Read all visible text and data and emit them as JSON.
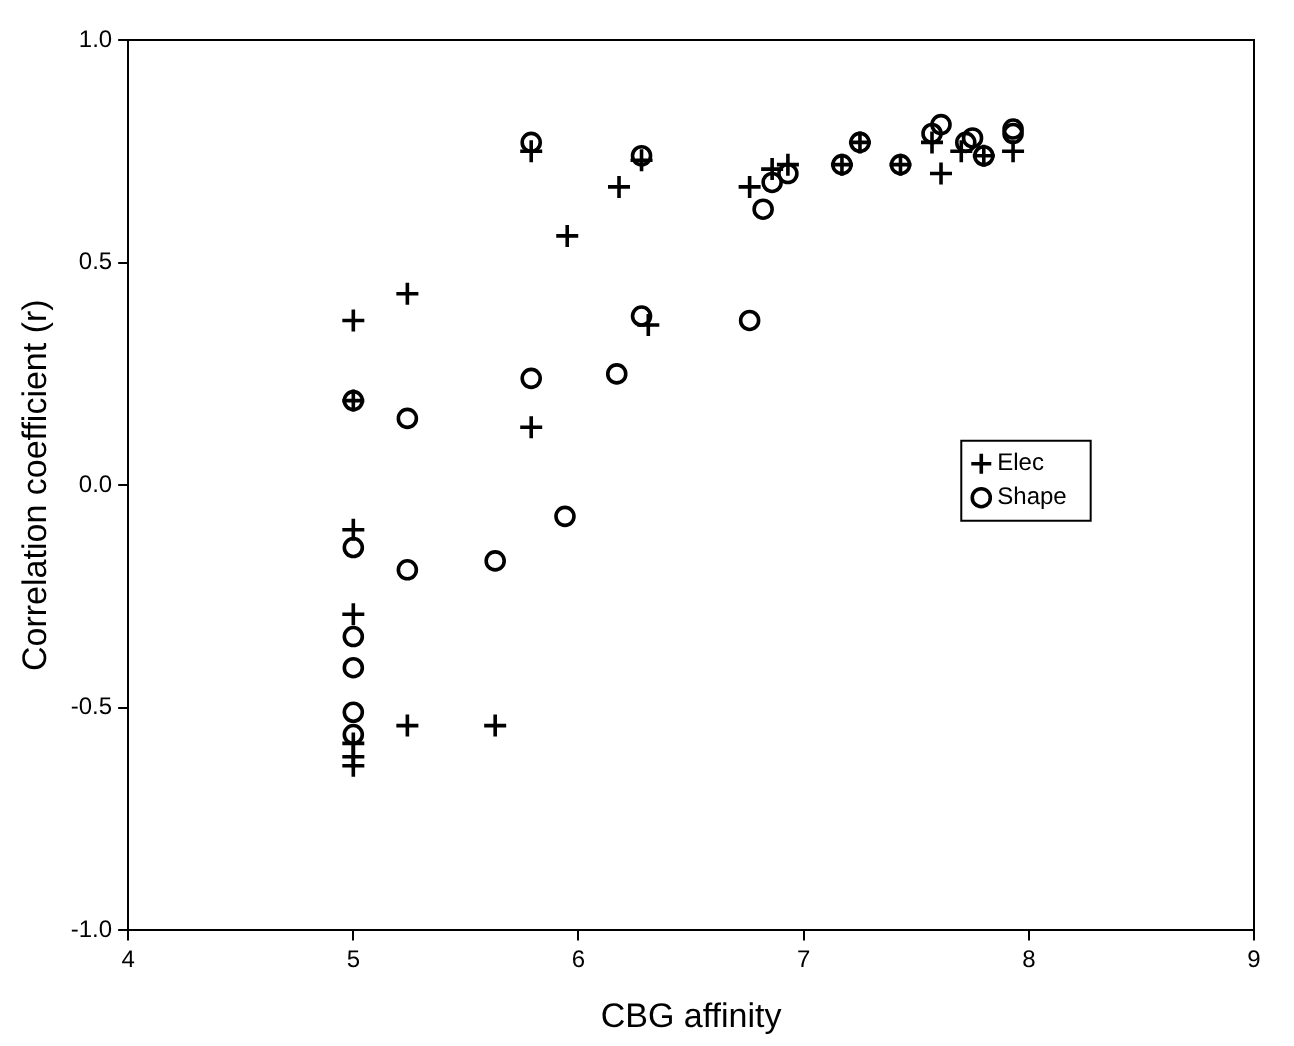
{
  "chart_data": {
    "type": "scatter",
    "xlabel": "CBG affinity",
    "ylabel": "Correlation coefficient (r)",
    "xlim": [
      4,
      9
    ],
    "xticks": [
      4,
      5,
      6,
      7,
      8,
      9
    ],
    "ylim": [
      -1,
      1
    ],
    "yticks": [
      {
        "value": -1,
        "label": "-1.0"
      },
      {
        "value": -0.5,
        "label": "-0.5"
      },
      {
        "value": 0,
        "label": "0.0"
      },
      {
        "value": 0.5,
        "label": "0.5"
      },
      {
        "value": 1,
        "label": "1.0"
      }
    ],
    "grid": false,
    "legend": "right",
    "series": [
      {
        "name": "Elec",
        "color": "#000000",
        "marker": "cross",
        "x": [
          5,
          5,
          5,
          5,
          5,
          5,
          5,
          5.24,
          5.24,
          5.63,
          5.79,
          5.79,
          5.95,
          6.18,
          6.28,
          6.31,
          6.76,
          6.86,
          6.93,
          7.17,
          7.25,
          7.43,
          7.57,
          7.61,
          7.7,
          7.8,
          7.93
        ],
        "values": [
          0.37,
          0.19,
          -0.1,
          -0.29,
          -0.58,
          -0.61,
          -0.63,
          0.43,
          -0.54,
          -0.54,
          0.13,
          0.75,
          0.56,
          0.67,
          0.73,
          0.36,
          0.67,
          0.71,
          0.72,
          0.72,
          0.77,
          0.72,
          0.77,
          0.7,
          0.75,
          0.74,
          0.75
        ]
      },
      {
        "name": "Shape",
        "color": "#000000",
        "marker": "circle",
        "x": [
          5,
          5,
          5,
          5,
          5,
          5,
          5.24,
          5.24,
          5.63,
          5.79,
          5.79,
          5.94,
          6.17,
          6.28,
          6.28,
          6.76,
          6.82,
          6.86,
          6.93,
          7.17,
          7.25,
          7.43,
          7.57,
          7.61,
          7.72,
          7.75,
          7.8,
          7.93,
          7.93
        ],
        "values": [
          0.19,
          -0.14,
          -0.34,
          -0.41,
          -0.51,
          -0.56,
          0.15,
          -0.19,
          -0.17,
          0.24,
          0.77,
          -0.07,
          0.25,
          0.74,
          0.38,
          0.37,
          0.62,
          0.68,
          0.7,
          0.72,
          0.77,
          0.72,
          0.79,
          0.81,
          0.77,
          0.78,
          0.74,
          0.8,
          0.79
        ]
      }
    ]
  }
}
